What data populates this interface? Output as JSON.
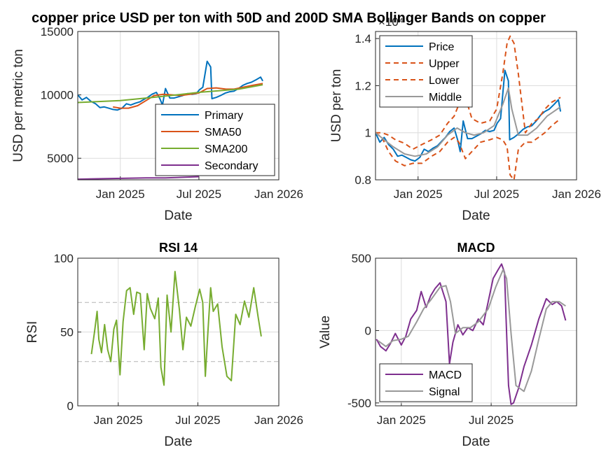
{
  "figure": {
    "title": "copper price USD per ton with 50D and 200D SMA Bollinger Bands on copper"
  },
  "chart_data": [
    {
      "type": "line",
      "title": "",
      "xlabel": "Date",
      "ylabel": "USD per metric ton",
      "xlim": [
        "2024-09-25",
        "2026-01-01"
      ],
      "ylim": [
        3300,
        15000
      ],
      "xticks": [
        "Jan 2025",
        "Jul 2025",
        "Jan 2026"
      ],
      "yticks": [
        5000,
        10000,
        15000
      ],
      "grid": true,
      "legend": "bottom-right",
      "series": [
        {
          "name": "Primary",
          "color": "#0072BD",
          "x": [
            "2024-09-25",
            "2024-10-05",
            "2024-10-15",
            "2024-10-25",
            "2024-11-05",
            "2024-11-15",
            "2024-11-25",
            "2024-12-05",
            "2024-12-15",
            "2024-12-25",
            "2025-01-05",
            "2025-01-15",
            "2025-01-25",
            "2025-02-05",
            "2025-02-15",
            "2025-02-25",
            "2025-03-05",
            "2025-03-15",
            "2025-03-25",
            "2025-04-02",
            "2025-04-08",
            "2025-04-15",
            "2025-04-25",
            "2025-05-05",
            "2025-05-15",
            "2025-05-25",
            "2025-06-05",
            "2025-06-15",
            "2025-06-25",
            "2025-07-02",
            "2025-07-10",
            "2025-07-20",
            "2025-07-28",
            "2025-07-31",
            "2025-08-10",
            "2025-08-20",
            "2025-08-31",
            "2025-09-10",
            "2025-09-20",
            "2025-09-30",
            "2025-10-10",
            "2025-10-20",
            "2025-10-30",
            "2025-11-10",
            "2025-11-20",
            "2025-11-25"
          ],
          "values": [
            10000,
            9600,
            9800,
            9500,
            9300,
            9000,
            9050,
            8950,
            8850,
            8800,
            8950,
            9300,
            9200,
            9350,
            9450,
            9650,
            9800,
            10050,
            10200,
            9700,
            9200,
            10500,
            9750,
            9750,
            9850,
            9950,
            10100,
            10050,
            10100,
            10400,
            10600,
            12650,
            12200,
            9700,
            9800,
            9950,
            10150,
            10250,
            10300,
            10500,
            10750,
            10900,
            11000,
            11200,
            11400,
            11100
          ]
        },
        {
          "name": "SMA50",
          "color": "#D95319",
          "x": [
            "2024-12-15",
            "2025-01-01",
            "2025-01-20",
            "2025-02-10",
            "2025-03-01",
            "2025-03-20",
            "2025-04-10",
            "2025-05-01",
            "2025-05-20",
            "2025-06-10",
            "2025-07-01",
            "2025-07-20",
            "2025-08-10",
            "2025-09-01",
            "2025-09-20",
            "2025-10-10",
            "2025-11-01",
            "2025-11-25"
          ],
          "values": [
            9050,
            8950,
            8950,
            9150,
            9550,
            9950,
            10050,
            10000,
            9950,
            10050,
            10150,
            10500,
            10550,
            10450,
            10450,
            10600,
            10750,
            10900
          ]
        },
        {
          "name": "SMA200",
          "color": "#77AC30",
          "x": [
            "2024-09-25",
            "2025-01-01",
            "2025-04-01",
            "2025-07-01",
            "2025-10-01",
            "2025-11-25"
          ],
          "values": [
            9400,
            9550,
            9850,
            10200,
            10450,
            10800
          ]
        },
        {
          "name": "Secondary",
          "color": "#7E2F8E",
          "x": [
            "2024-09-25",
            "2024-12-01",
            "2025-03-01",
            "2025-04-15",
            "2025-07-01"
          ],
          "values": [
            3350,
            3400,
            3450,
            3450,
            3550
          ]
        }
      ]
    },
    {
      "type": "line",
      "title": "",
      "xlabel": "Date",
      "ylabel": "USD per ton",
      "yexponent_label": "×10⁴",
      "xlim": [
        "2024-09-25",
        "2026-01-01"
      ],
      "ylim": [
        0.8,
        1.43
      ],
      "xticks": [
        "Jan 2025",
        "Jul 2025",
        "Jan 2026"
      ],
      "yticks": [
        "0.8",
        "1",
        "1.2",
        "1.4"
      ],
      "grid": true,
      "legend": "top-left",
      "series": [
        {
          "name": "Price",
          "color": "#0072BD",
          "x": [
            "2024-09-25",
            "2024-10-05",
            "2024-10-15",
            "2024-10-25",
            "2024-11-05",
            "2024-11-15",
            "2024-11-25",
            "2024-12-05",
            "2024-12-15",
            "2024-12-25",
            "2025-01-05",
            "2025-01-15",
            "2025-01-25",
            "2025-02-05",
            "2025-02-15",
            "2025-02-25",
            "2025-03-05",
            "2025-03-15",
            "2025-03-25",
            "2025-04-02",
            "2025-04-08",
            "2025-04-15",
            "2025-04-25",
            "2025-05-05",
            "2025-05-15",
            "2025-05-25",
            "2025-06-05",
            "2025-06-15",
            "2025-06-25",
            "2025-07-02",
            "2025-07-10",
            "2025-07-20",
            "2025-07-28",
            "2025-07-31",
            "2025-08-10",
            "2025-08-20",
            "2025-08-31",
            "2025-09-10",
            "2025-09-20",
            "2025-09-30",
            "2025-10-10",
            "2025-10-20",
            "2025-10-30",
            "2025-11-10",
            "2025-11-20",
            "2025-11-25"
          ],
          "values": [
            1.0,
            0.96,
            0.98,
            0.95,
            0.93,
            0.9,
            0.905,
            0.895,
            0.885,
            0.88,
            0.895,
            0.93,
            0.92,
            0.935,
            0.945,
            0.965,
            0.98,
            1.005,
            1.02,
            0.97,
            0.92,
            1.05,
            0.975,
            0.975,
            0.985,
            0.995,
            1.01,
            1.005,
            1.01,
            1.04,
            1.06,
            1.265,
            1.22,
            0.97,
            0.98,
            0.995,
            1.015,
            1.025,
            1.03,
            1.05,
            1.075,
            1.09,
            1.1,
            1.12,
            1.14,
            1.09
          ]
        },
        {
          "name": "Upper",
          "color": "#D95319",
          "dashed": true,
          "x": [
            "2024-09-25",
            "2024-10-10",
            "2024-10-25",
            "2024-11-10",
            "2024-12-01",
            "2024-12-20",
            "2025-01-10",
            "2025-02-01",
            "2025-02-20",
            "2025-03-10",
            "2025-03-25",
            "2025-04-05",
            "2025-04-20",
            "2025-05-05",
            "2025-05-25",
            "2025-06-15",
            "2025-07-01",
            "2025-07-15",
            "2025-07-25",
            "2025-08-01",
            "2025-08-10",
            "2025-08-20",
            "2025-09-05",
            "2025-09-20",
            "2025-10-05",
            "2025-10-20",
            "2025-11-05",
            "2025-11-25"
          ],
          "values": [
            1.0,
            1.0,
            0.99,
            0.97,
            0.955,
            0.93,
            0.95,
            0.97,
            0.99,
            1.04,
            1.07,
            1.12,
            1.15,
            1.06,
            1.04,
            1.05,
            1.1,
            1.25,
            1.38,
            1.41,
            1.38,
            1.25,
            1.0,
            1.04,
            1.06,
            1.1,
            1.13,
            1.15
          ]
        },
        {
          "name": "Lower",
          "color": "#D95319",
          "dashed": true,
          "x": [
            "2024-09-25",
            "2024-10-10",
            "2024-10-25",
            "2024-11-10",
            "2024-12-01",
            "2024-12-20",
            "2025-01-10",
            "2025-02-01",
            "2025-02-20",
            "2025-03-10",
            "2025-03-25",
            "2025-04-05",
            "2025-04-20",
            "2025-05-05",
            "2025-05-25",
            "2025-06-15",
            "2025-07-01",
            "2025-07-15",
            "2025-07-25",
            "2025-08-01",
            "2025-08-10",
            "2025-08-20",
            "2025-09-05",
            "2025-09-20",
            "2025-10-05",
            "2025-10-20",
            "2025-11-05",
            "2025-11-25"
          ],
          "values": [
            1.0,
            0.98,
            0.92,
            0.88,
            0.86,
            0.87,
            0.87,
            0.9,
            0.92,
            0.96,
            0.98,
            0.96,
            0.89,
            0.92,
            0.96,
            0.97,
            0.98,
            0.97,
            0.94,
            0.82,
            0.8,
            0.93,
            0.96,
            0.96,
            0.98,
            1.0,
            1.03,
            1.06
          ]
        },
        {
          "name": "Middle",
          "color": "#999999",
          "x": [
            "2024-09-25",
            "2024-10-15",
            "2024-11-05",
            "2024-12-01",
            "2024-12-25",
            "2025-01-20",
            "2025-02-15",
            "2025-03-10",
            "2025-04-01",
            "2025-04-20",
            "2025-05-10",
            "2025-06-01",
            "2025-06-25",
            "2025-07-15",
            "2025-07-28",
            "2025-08-05",
            "2025-08-20",
            "2025-09-10",
            "2025-10-01",
            "2025-10-25",
            "2025-11-25"
          ],
          "values": [
            1.0,
            0.97,
            0.94,
            0.91,
            0.9,
            0.91,
            0.94,
            0.99,
            1.02,
            1.0,
            0.99,
            1.0,
            1.03,
            1.12,
            1.19,
            1.1,
            0.99,
            0.99,
            1.02,
            1.07,
            1.11
          ]
        }
      ]
    },
    {
      "type": "line",
      "title": "RSI 14",
      "xlabel": "Date",
      "ylabel": "RSI",
      "xlim": [
        "2024-10-01",
        "2026-01-01"
      ],
      "ylim": [
        0,
        100
      ],
      "xticks": [
        "Jan 2025",
        "Jul 2025",
        "Jan 2026"
      ],
      "yticks": [
        0,
        50,
        100
      ],
      "reference_lines": [
        30,
        70
      ],
      "grid": true,
      "series": [
        {
          "name": "",
          "color": "#77AC30",
          "x": [
            "2024-11-01",
            "2024-11-08",
            "2024-11-14",
            "2024-11-18",
            "2024-11-24",
            "2024-12-01",
            "2024-12-08",
            "2024-12-15",
            "2024-12-22",
            "2024-12-28",
            "2025-01-05",
            "2025-01-12",
            "2025-01-20",
            "2025-01-28",
            "2025-02-05",
            "2025-02-12",
            "2025-02-20",
            "2025-03-01",
            "2025-03-08",
            "2025-03-15",
            "2025-03-25",
            "2025-04-02",
            "2025-04-08",
            "2025-04-15",
            "2025-04-22",
            "2025-05-01",
            "2025-05-10",
            "2025-05-20",
            "2025-05-28",
            "2025-06-05",
            "2025-06-15",
            "2025-06-25",
            "2025-07-05",
            "2025-07-12",
            "2025-07-18",
            "2025-07-24",
            "2025-07-30",
            "2025-08-05",
            "2025-08-15",
            "2025-08-25",
            "2025-09-05",
            "2025-09-15",
            "2025-09-25",
            "2025-10-05",
            "2025-10-15",
            "2025-10-25",
            "2025-11-05",
            "2025-11-15",
            "2025-11-22"
          ],
          "values": [
            35,
            50,
            64,
            45,
            36,
            55,
            38,
            30,
            52,
            58,
            21,
            57,
            78,
            80,
            62,
            77,
            76,
            38,
            76,
            66,
            59,
            73,
            26,
            14,
            75,
            50,
            91,
            65,
            38,
            60,
            54,
            67,
            79,
            70,
            20,
            51,
            80,
            64,
            69,
            40,
            20,
            17,
            62,
            55,
            71,
            60,
            80,
            60,
            47
          ]
        }
      ]
    },
    {
      "type": "line",
      "title": "MACD",
      "xlabel": "Date",
      "ylabel": "Value",
      "xlim": [
        "2024-11-10",
        "2025-12-20"
      ],
      "ylim": [
        -520,
        500
      ],
      "xticks": [
        "Jan 2025",
        "Jul 2025"
      ],
      "yticks": [
        -500,
        0,
        500
      ],
      "grid": true,
      "legend": "bottom-left",
      "series": [
        {
          "name": "MACD",
          "color": "#7E2F8E",
          "x": [
            "2024-11-12",
            "2024-11-20",
            "2024-12-01",
            "2024-12-10",
            "2024-12-20",
            "2025-01-01",
            "2025-01-10",
            "2025-01-20",
            "2025-02-01",
            "2025-02-10",
            "2025-02-20",
            "2025-03-01",
            "2025-03-10",
            "2025-03-20",
            "2025-04-01",
            "2025-04-08",
            "2025-04-15",
            "2025-04-25",
            "2025-05-05",
            "2025-05-15",
            "2025-05-25",
            "2025-06-05",
            "2025-06-15",
            "2025-06-25",
            "2025-07-05",
            "2025-07-15",
            "2025-07-22",
            "2025-07-28",
            "2025-07-31",
            "2025-08-05",
            "2025-08-10",
            "2025-08-15",
            "2025-08-25",
            "2025-09-05",
            "2025-09-20",
            "2025-10-05",
            "2025-10-20",
            "2025-11-01",
            "2025-11-10",
            "2025-11-20",
            "2025-11-28"
          ],
          "values": [
            -60,
            -110,
            -140,
            -90,
            -20,
            -100,
            -40,
            80,
            140,
            270,
            160,
            240,
            290,
            330,
            200,
            -230,
            -80,
            40,
            -30,
            20,
            0,
            80,
            40,
            200,
            360,
            420,
            460,
            400,
            80,
            -380,
            -510,
            -500,
            -400,
            -250,
            -100,
            80,
            220,
            180,
            200,
            170,
            70
          ]
        },
        {
          "name": "Signal",
          "color": "#999999",
          "x": [
            "2024-11-15",
            "2024-12-01",
            "2024-12-15",
            "2025-01-01",
            "2025-01-15",
            "2025-02-01",
            "2025-02-15",
            "2025-03-01",
            "2025-03-20",
            "2025-04-01",
            "2025-04-10",
            "2025-04-20",
            "2025-05-05",
            "2025-05-20",
            "2025-06-05",
            "2025-06-25",
            "2025-07-10",
            "2025-07-25",
            "2025-08-01",
            "2025-08-10",
            "2025-08-20",
            "2025-09-05",
            "2025-09-20",
            "2025-10-05",
            "2025-10-20",
            "2025-11-01",
            "2025-11-15",
            "2025-11-28"
          ],
          "values": [
            -70,
            -110,
            -70,
            -60,
            -40,
            60,
            150,
            210,
            300,
            310,
            200,
            -20,
            20,
            20,
            60,
            150,
            300,
            420,
            360,
            -20,
            -380,
            -420,
            -280,
            -60,
            150,
            200,
            200,
            170
          ]
        }
      ]
    }
  ]
}
